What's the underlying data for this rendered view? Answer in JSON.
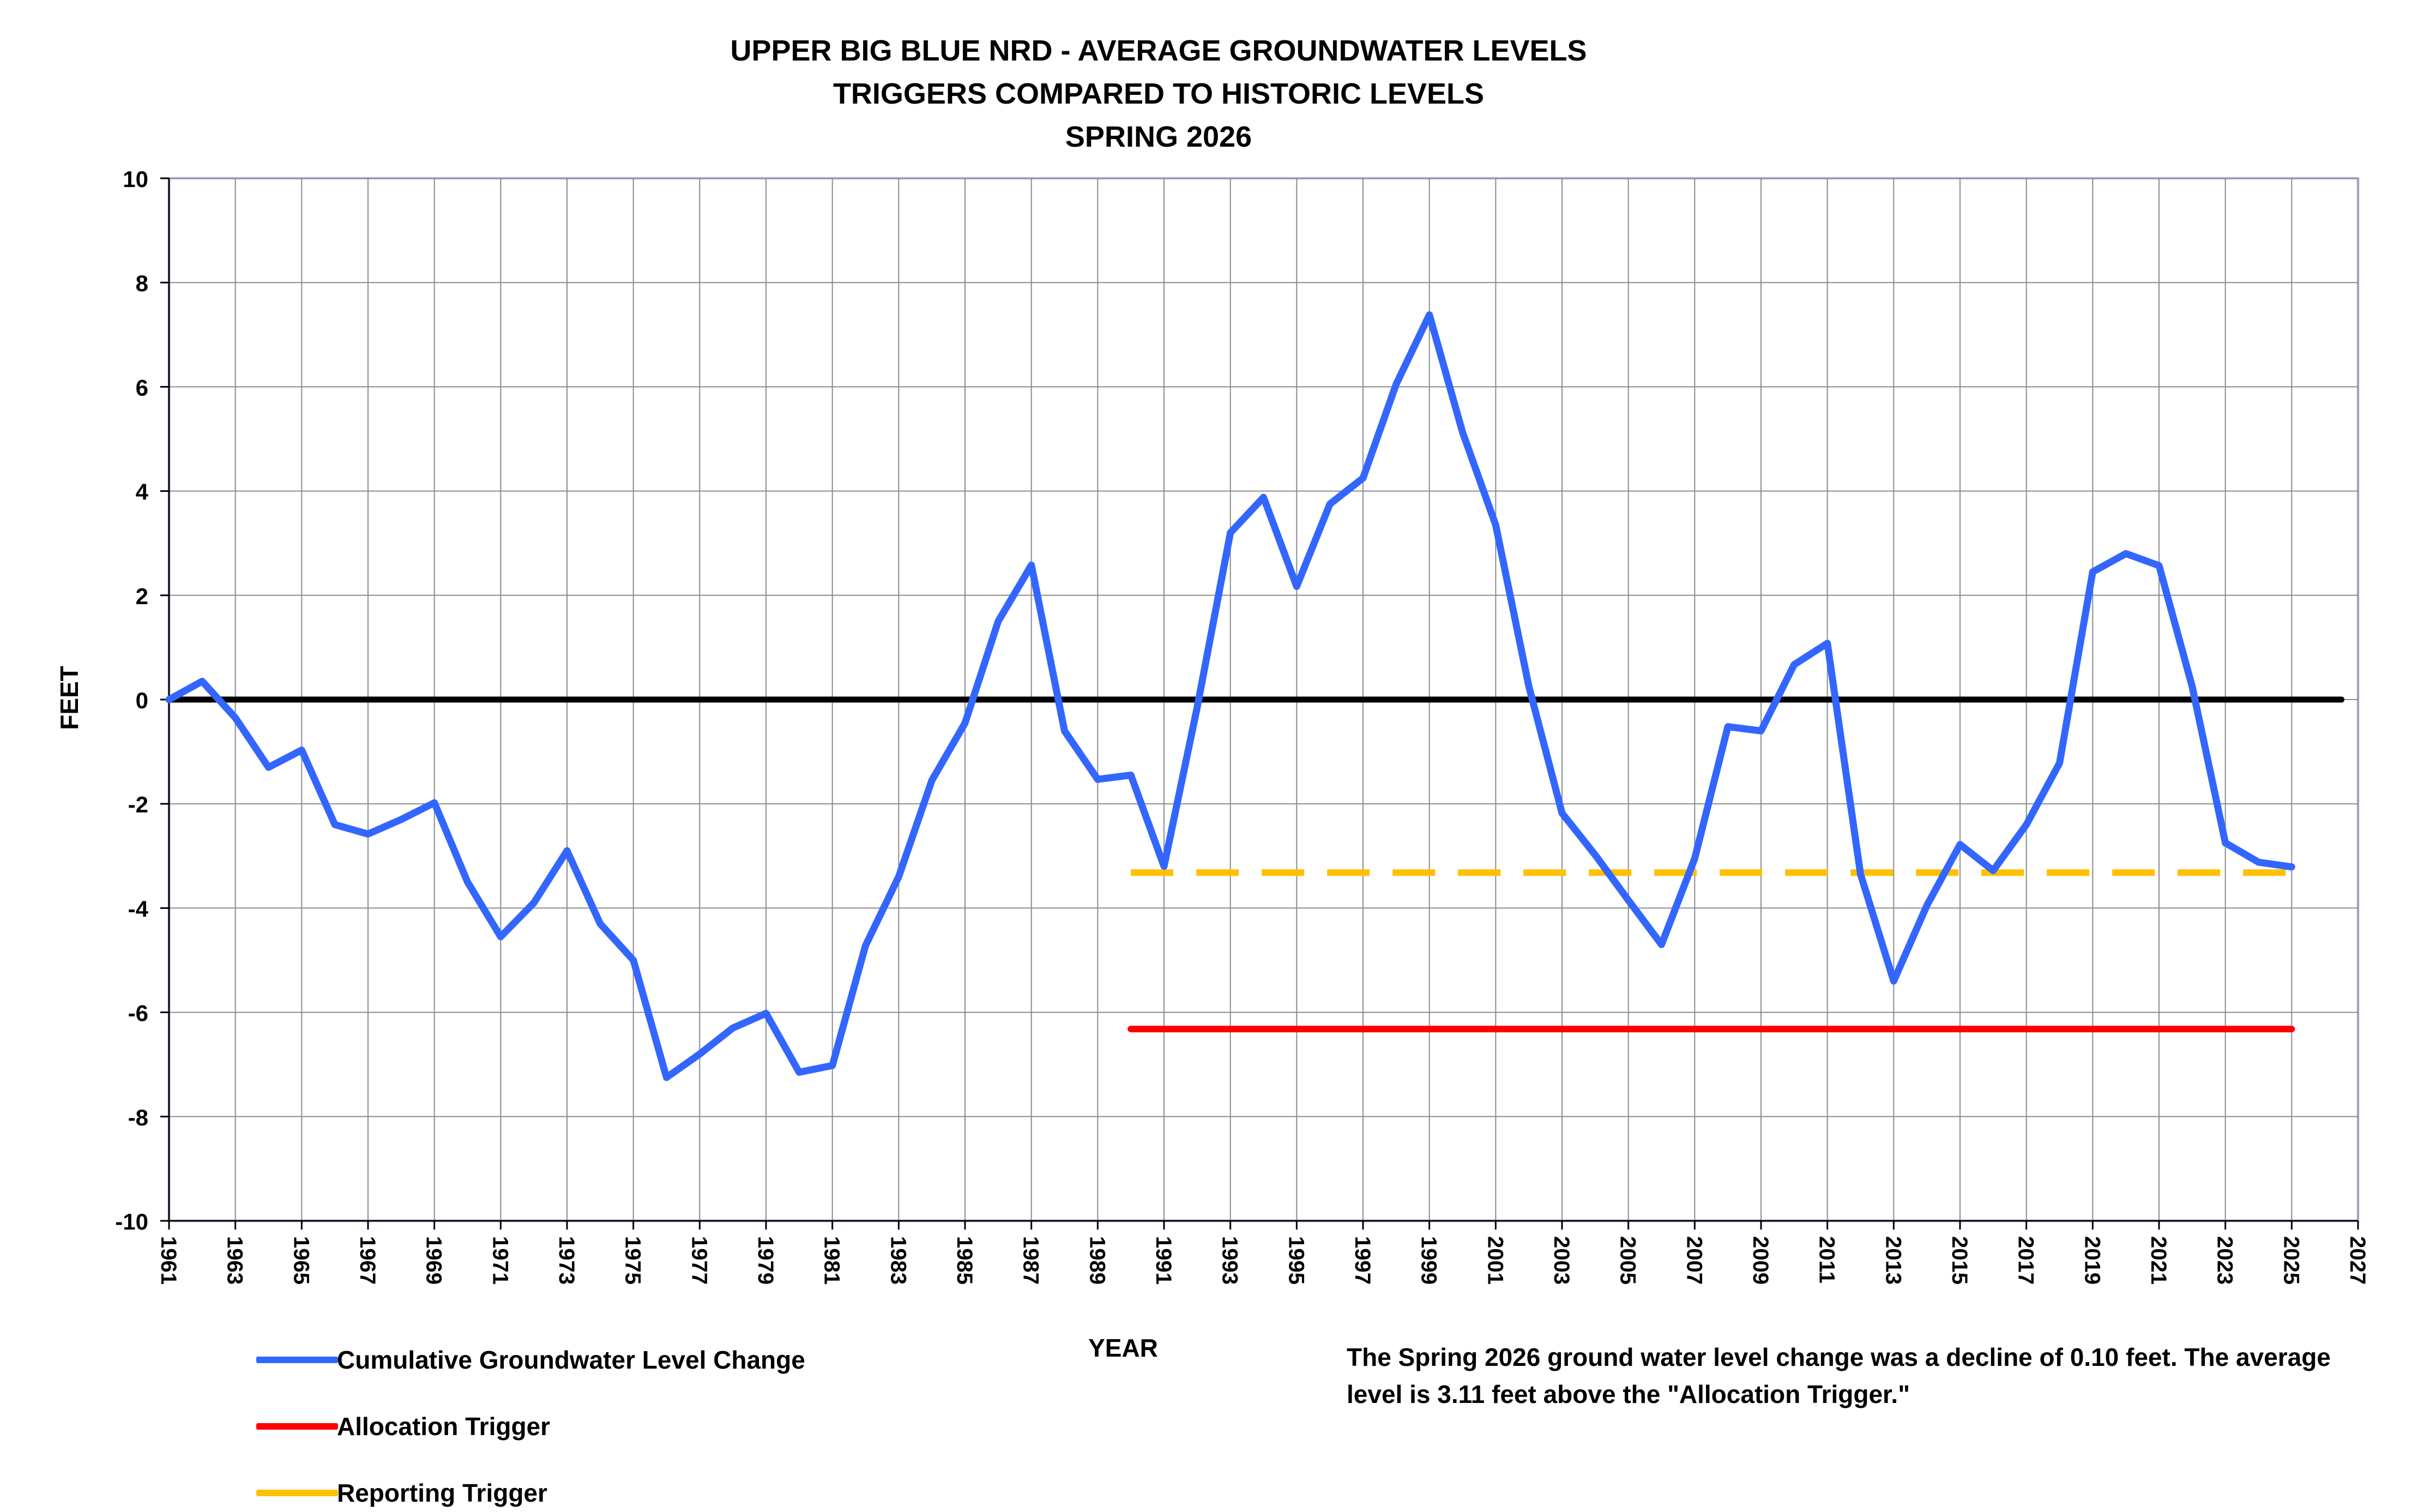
{
  "chart_data": {
    "type": "line",
    "title": [
      "UPPER BIG BLUE NRD - AVERAGE GROUNDWATER LEVELS",
      "TRIGGERS COMPARED TO HISTORIC LEVELS",
      "SPRING 2026"
    ],
    "xlabel": "YEAR",
    "ylabel": "FEET",
    "xlim": [
      1961,
      2027
    ],
    "ylim": [
      -10,
      10
    ],
    "x_ticks": [
      1961,
      1963,
      1965,
      1967,
      1969,
      1971,
      1973,
      1975,
      1977,
      1979,
      1981,
      1983,
      1985,
      1987,
      1989,
      1991,
      1993,
      1995,
      1997,
      1999,
      2001,
      2003,
      2005,
      2007,
      2009,
      2011,
      2013,
      2015,
      2017,
      2019,
      2021,
      2023,
      2025,
      2027
    ],
    "y_ticks": [
      10,
      8,
      6,
      4,
      2,
      0,
      -2,
      -4,
      -6,
      -8,
      -10
    ],
    "grid": true,
    "legend_position": "bottom-left",
    "zero_line": {
      "y": 0,
      "color": "#000000"
    },
    "series": [
      {
        "name": "Cumulative Groundwater Level Change",
        "color": "#3366ff",
        "style": "solid",
        "x": [
          1961,
          1962,
          1963,
          1964,
          1965,
          1966,
          1967,
          1968,
          1969,
          1970,
          1971,
          1972,
          1973,
          1974,
          1975,
          1976,
          1977,
          1978,
          1979,
          1980,
          1981,
          1982,
          1983,
          1984,
          1985,
          1986,
          1987,
          1988,
          1989,
          1990,
          1991,
          1992,
          1993,
          1994,
          1995,
          1996,
          1997,
          1998,
          1999,
          2000,
          2001,
          2002,
          2003,
          2004,
          2005,
          2006,
          2007,
          2008,
          2009,
          2010,
          2011,
          2012,
          2013,
          2014,
          2015,
          2016,
          2017,
          2018,
          2019,
          2020,
          2021,
          2022,
          2023,
          2024,
          2025
        ],
        "y": [
          0.0,
          0.35,
          -0.35,
          -1.3,
          -0.97,
          -2.4,
          -2.58,
          -2.3,
          -1.98,
          -3.5,
          -4.55,
          -3.9,
          -2.9,
          -4.3,
          -5.0,
          -7.25,
          -6.8,
          -6.3,
          -6.02,
          -7.15,
          -7.02,
          -4.72,
          -3.4,
          -1.55,
          -0.45,
          1.5,
          2.58,
          -0.6,
          -1.53,
          -1.45,
          -3.2,
          -0.15,
          3.2,
          3.88,
          2.17,
          3.75,
          4.25,
          6.05,
          7.38,
          5.13,
          3.35,
          0.25,
          -2.18,
          -2.98,
          -3.85,
          -4.7,
          -3.05,
          -0.52,
          -0.6,
          0.67,
          1.08,
          -3.35,
          -5.4,
          -3.95,
          -2.78,
          -3.28,
          -2.4,
          -1.22,
          2.45,
          2.8,
          2.57,
          0.25,
          -2.75,
          -3.12,
          -3.21
        ]
      },
      {
        "name": "Allocation Trigger",
        "color": "#ff0000",
        "style": "solid",
        "x": [
          1990,
          2025
        ],
        "y": [
          -6.32,
          -6.32
        ]
      },
      {
        "name": "Reporting Trigger",
        "color": "#ffc000",
        "style": "dashed",
        "x": [
          1990,
          2025
        ],
        "y": [
          -3.32,
          -3.32
        ]
      }
    ],
    "annotation": "The Spring 2026 ground water level change was a decline of 0.10 feet. The average level is 3.11 feet above the \"Allocation Trigger.\""
  }
}
